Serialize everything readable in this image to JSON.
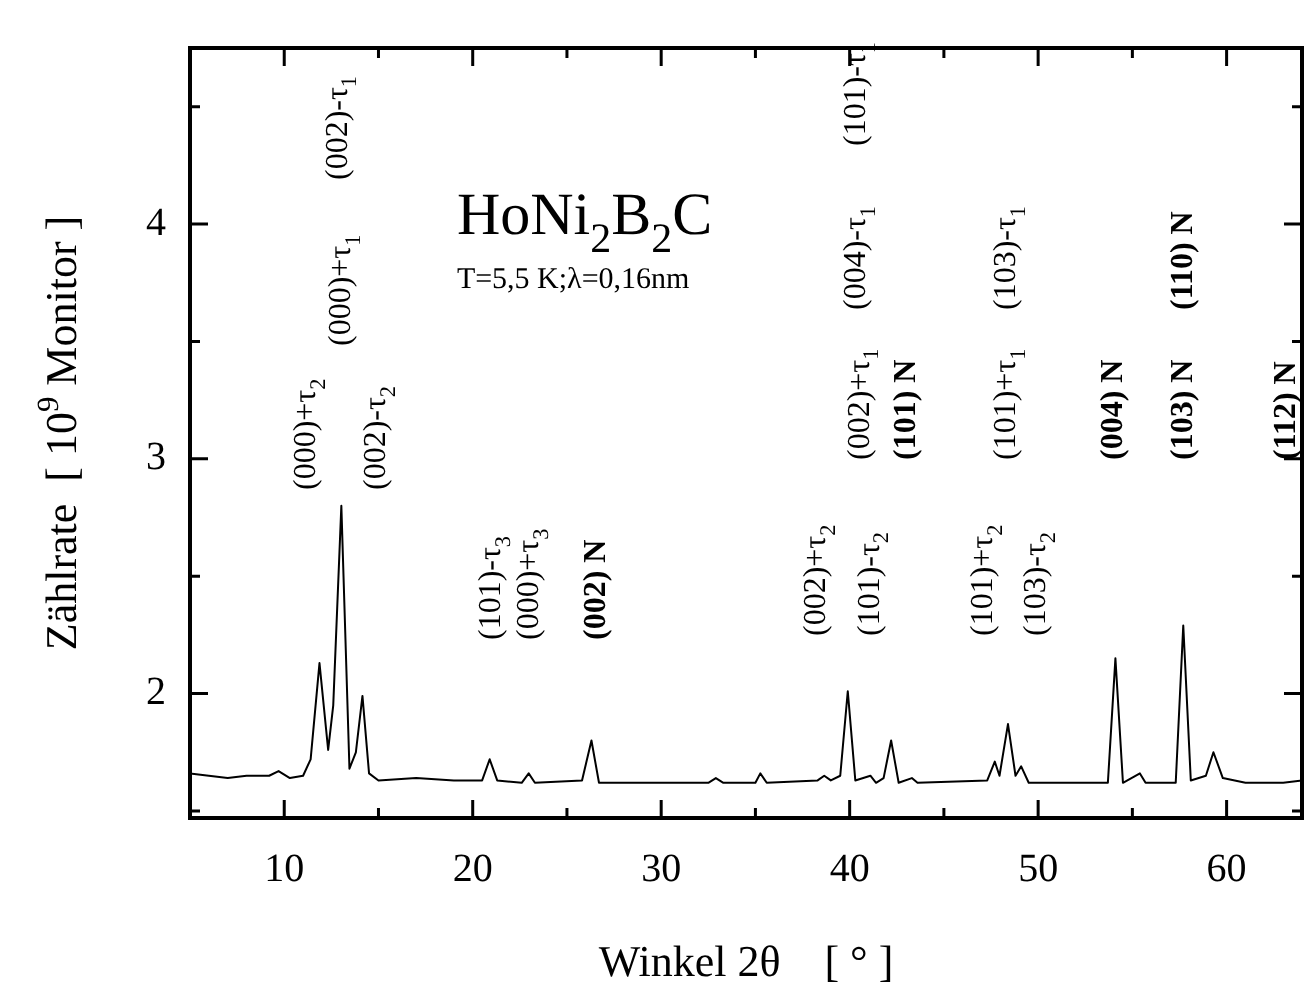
{
  "chart_data": {
    "type": "line",
    "title": "HoNi$_{2}$B$_{2}$C",
    "subtitle": "T=5,5 K;λ=0,16nm",
    "xlabel": "Winkel 2θ    [ ° ]",
    "ylabel": "Zählrate  [ 10$^{9}$ Monitor ]",
    "x": [
      5,
      6,
      7,
      8,
      9.2,
      9.7,
      10.3,
      11.0,
      11.4,
      11.87,
      12.33,
      12.6,
      13.03,
      13.46,
      13.8,
      14.15,
      14.5,
      15,
      17,
      19,
      20.5,
      20.9,
      21.3,
      22.6,
      22.97,
      23.3,
      25.8,
      26.3,
      26.7,
      29,
      32.5,
      32.9,
      33.3,
      35.0,
      35.26,
      35.6,
      38.3,
      38.65,
      39.0,
      39.5,
      39.9,
      40.3,
      41.1,
      41.4,
      41.8,
      42.2,
      42.6,
      43.3,
      43.6,
      47.3,
      47.7,
      47.95,
      48.4,
      48.8,
      49.1,
      49.5,
      53.7,
      54.1,
      54.5,
      55.4,
      55.7,
      57.3,
      57.7,
      58.1,
      58.9,
      59.3,
      59.8,
      61,
      63,
      64
    ],
    "values": [
      1.66,
      1.65,
      1.64,
      1.65,
      1.65,
      1.67,
      1.64,
      1.65,
      1.72,
      2.13,
      1.76,
      1.95,
      2.8,
      1.68,
      1.75,
      1.99,
      1.66,
      1.63,
      1.64,
      1.63,
      1.63,
      1.72,
      1.63,
      1.62,
      1.66,
      1.62,
      1.63,
      1.8,
      1.62,
      1.62,
      1.62,
      1.64,
      1.62,
      1.62,
      1.66,
      1.62,
      1.63,
      1.65,
      1.63,
      1.65,
      2.01,
      1.63,
      1.65,
      1.62,
      1.64,
      1.8,
      1.62,
      1.64,
      1.62,
      1.63,
      1.71,
      1.65,
      1.87,
      1.65,
      1.69,
      1.62,
      1.62,
      2.15,
      1.62,
      1.66,
      1.62,
      1.62,
      2.29,
      1.63,
      1.65,
      1.75,
      1.64,
      1.62,
      1.62,
      1.63
    ],
    "color": "#000000",
    "marker": "none",
    "line_style": "solid",
    "xlim": [
      5,
      64
    ],
    "ylim": [
      1.47,
      4.75
    ],
    "xticks": [
      {
        "value": 5,
        "label": null
      },
      10,
      {
        "value": 15,
        "label": null
      },
      20,
      {
        "value": 25,
        "label": null
      },
      30,
      {
        "value": 35,
        "label": null
      },
      40,
      {
        "value": 45,
        "label": null
      },
      50,
      {
        "value": 55,
        "label": null
      },
      60
    ],
    "yticks": [
      {
        "value": 1.5,
        "label": null
      },
      2,
      {
        "value": 2.5,
        "label": null
      },
      3,
      {
        "value": 3.5,
        "label": null
      },
      4,
      {
        "value": 4.5,
        "label": null
      }
    ],
    "annotations": [
      "(000)+τ$_{2}$",
      "(000)+τ$_{1}$",
      "(002)-τ$_{1}$",
      "(002)-τ$_{2}$",
      "(101)-τ$_{3}$",
      "(000)+τ$_{3}$",
      "(002) N",
      "(002)+τ$_{2}$",
      "(101)-τ$_{2}$",
      "(002)+τ$_{1}$",
      "(101) N",
      "(004)-τ$_{1}$",
      "(101)-τ$_{1}$",
      "(101)+τ$_{2}$",
      "(103)-τ$_{2}$",
      "(101)+τ$_{1}$",
      "(103)-τ$_{1}$",
      "(004) N",
      "(103) N",
      "(110) N",
      "(112) N"
    ]
  }
}
